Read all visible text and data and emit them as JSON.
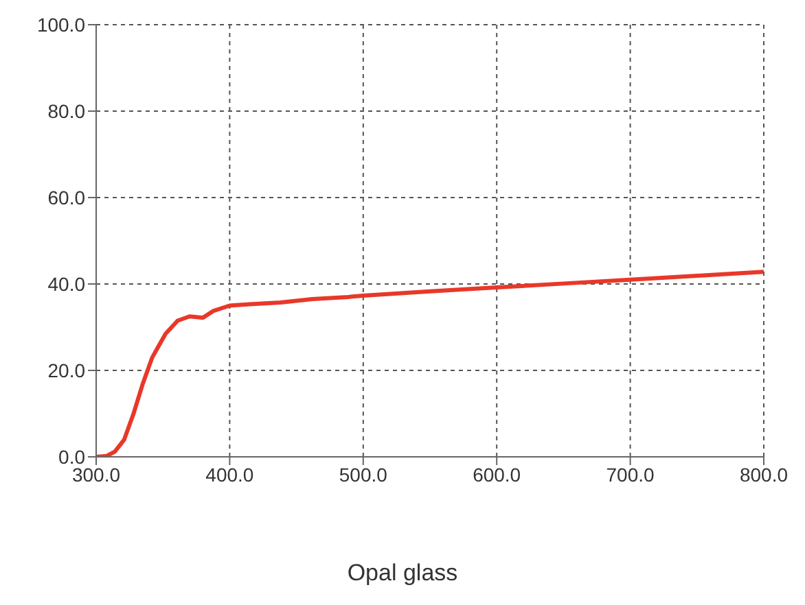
{
  "chart_data": {
    "type": "line",
    "annotations": [
      "Opal glass"
    ],
    "x": [
      300,
      308,
      314,
      321,
      328,
      335,
      342,
      352,
      361,
      370,
      380,
      388,
      400,
      415,
      438,
      462,
      489,
      500,
      550,
      600,
      650,
      700,
      750,
      800
    ],
    "series": [
      {
        "color": "#e8382a",
        "values": [
          0,
          0.2,
          1.2,
          4,
          10,
          17,
          23,
          28.5,
          31.5,
          32.5,
          32.2,
          33.8,
          35,
          35.3,
          35.7,
          36.5,
          37,
          37.3,
          38.3,
          39.2,
          40.1,
          41,
          41.9,
          42.8
        ]
      }
    ],
    "xlim": [
      300,
      800
    ],
    "xticks": [
      {
        "value": 300,
        "label": "300.0"
      },
      {
        "value": 400,
        "label": "400.0"
      },
      {
        "value": 500,
        "label": "500.0"
      },
      {
        "value": 600,
        "label": "600.0"
      },
      {
        "value": 700,
        "label": "700.0"
      },
      {
        "value": 800,
        "label": "800.0"
      }
    ],
    "ylim": [
      0,
      100
    ],
    "yticks": [
      {
        "value": 0,
        "label": "0.0"
      },
      {
        "value": 20,
        "label": "20.0"
      },
      {
        "value": 40,
        "label": "40.0"
      },
      {
        "value": 60,
        "label": "60.0"
      },
      {
        "value": 80,
        "label": "80.0"
      },
      {
        "value": 100,
        "label": "100.0"
      }
    ],
    "grid": true
  }
}
